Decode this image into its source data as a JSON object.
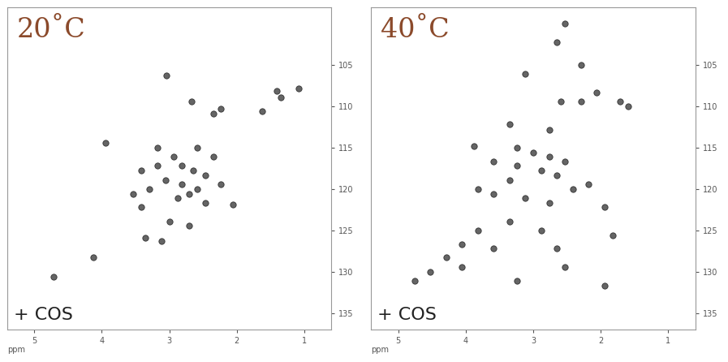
{
  "chart_data": [
    {
      "type": "scatter",
      "title": "20˚C",
      "annotation": "+ COS",
      "xlabel": "ppm",
      "color": "#4a4a4a",
      "marker": "o",
      "x": [
        3.04,
        2.67,
        2.35,
        2.24,
        1.62,
        1.35,
        1.41,
        1.08,
        3.94,
        3.18,
        2.94,
        2.82,
        2.65,
        2.47,
        3.06,
        3.29,
        2.71,
        2.88,
        2.47,
        3.41,
        2.06,
        3.0,
        2.71,
        3.35,
        3.12,
        4.71,
        2.59,
        2.35,
        3.18,
        3.41,
        2.24,
        3.53,
        4.12,
        2.82,
        2.59
      ],
      "y": [
        106.3,
        109.4,
        110.9,
        110.3,
        110.6,
        108.9,
        108.1,
        107.8,
        114.4,
        115.0,
        116.1,
        117.2,
        117.8,
        118.3,
        118.9,
        120.0,
        120.6,
        121.1,
        121.7,
        122.2,
        121.9,
        123.9,
        124.4,
        125.9,
        126.3,
        130.6,
        115.0,
        116.1,
        117.2,
        117.8,
        119.4,
        120.6,
        128.3,
        119.4,
        120.0
      ],
      "xlim": [
        5.4,
        0.6
      ],
      "xticks": [
        5,
        4,
        3,
        2,
        1
      ],
      "ylim": [
        137,
        98
      ],
      "yticks": [
        105,
        110,
        115,
        120,
        125,
        130,
        135
      ]
    },
    {
      "type": "scatter",
      "title": "40˚C",
      "annotation": "+ COS",
      "xlabel": "ppm",
      "color": "#4a4a4a",
      "marker": "o",
      "x": [
        3.88,
        3.35,
        2.76,
        2.59,
        2.29,
        2.06,
        1.71,
        1.59,
        2.65,
        2.53,
        2.29,
        3.12,
        3.59,
        3.24,
        2.88,
        2.65,
        3.35,
        3.82,
        3.59,
        3.12,
        2.76,
        2.41,
        2.18,
        1.94,
        1.82,
        4.06,
        4.29,
        4.76,
        4.53,
        3.82,
        3.35,
        2.88,
        2.65,
        2.53,
        3.24,
        4.06,
        3.59,
        1.94,
        3.24,
        3.0,
        2.76,
        2.53
      ],
      "y": [
        114.8,
        112.2,
        112.8,
        109.4,
        109.4,
        108.3,
        109.4,
        110.0,
        102.2,
        100.0,
        105.0,
        106.1,
        116.7,
        117.2,
        117.8,
        118.3,
        118.9,
        120.0,
        120.6,
        121.1,
        121.7,
        120.0,
        119.4,
        122.2,
        125.6,
        126.7,
        128.3,
        131.1,
        130.0,
        125.0,
        123.9,
        125.0,
        127.2,
        129.4,
        131.1,
        129.4,
        127.2,
        131.7,
        115.0,
        115.6,
        116.1,
        116.7
      ],
      "xlim": [
        5.4,
        0.6
      ],
      "xticks": [
        5,
        4,
        3,
        2,
        1
      ],
      "ylim": [
        137,
        98
      ],
      "yticks": [
        105,
        110,
        115,
        120,
        125,
        130,
        135
      ]
    }
  ]
}
